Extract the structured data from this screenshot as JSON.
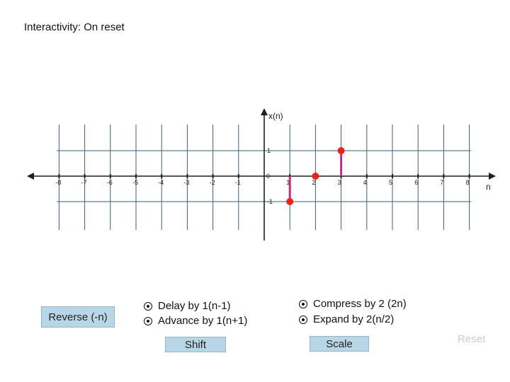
{
  "title": "Interactivity: On reset",
  "chart_data": {
    "type": "stem",
    "xlabel": "n",
    "ylabel": "x(n)",
    "x_ticks": [
      -8,
      -7,
      -6,
      -5,
      -4,
      -3,
      -2,
      -1,
      0,
      1,
      2,
      3,
      4,
      5,
      6,
      7,
      8
    ],
    "x_tick_labels": [
      "-8",
      "-7",
      "-6",
      "-5",
      "-4",
      "-3",
      "-2",
      "-1",
      "0",
      "1",
      "2",
      "3",
      "4",
      "5",
      "6",
      "7",
      "8"
    ],
    "y_tick_labels": [
      "1",
      "-1"
    ],
    "points": [
      {
        "n": 1,
        "value": -1
      },
      {
        "n": 2,
        "value": 0
      },
      {
        "n": 3,
        "value": 1
      }
    ],
    "xlim": [
      -9,
      9
    ],
    "ylim": [
      -1.8,
      1.5
    ],
    "grid": true,
    "stem_color": "#cc2a7a",
    "marker_color": "#e8231c"
  },
  "buttons": {
    "reverse": "Reverse (-n)",
    "shift": "Shift",
    "scale": "Scale",
    "reset": "Reset"
  },
  "options": {
    "delay": "Delay by 1(n-1)",
    "advance": "Advance by 1(n+1)",
    "compress": "Compress by 2 (2n)",
    "expand": "Expand by 2(n/2)"
  }
}
